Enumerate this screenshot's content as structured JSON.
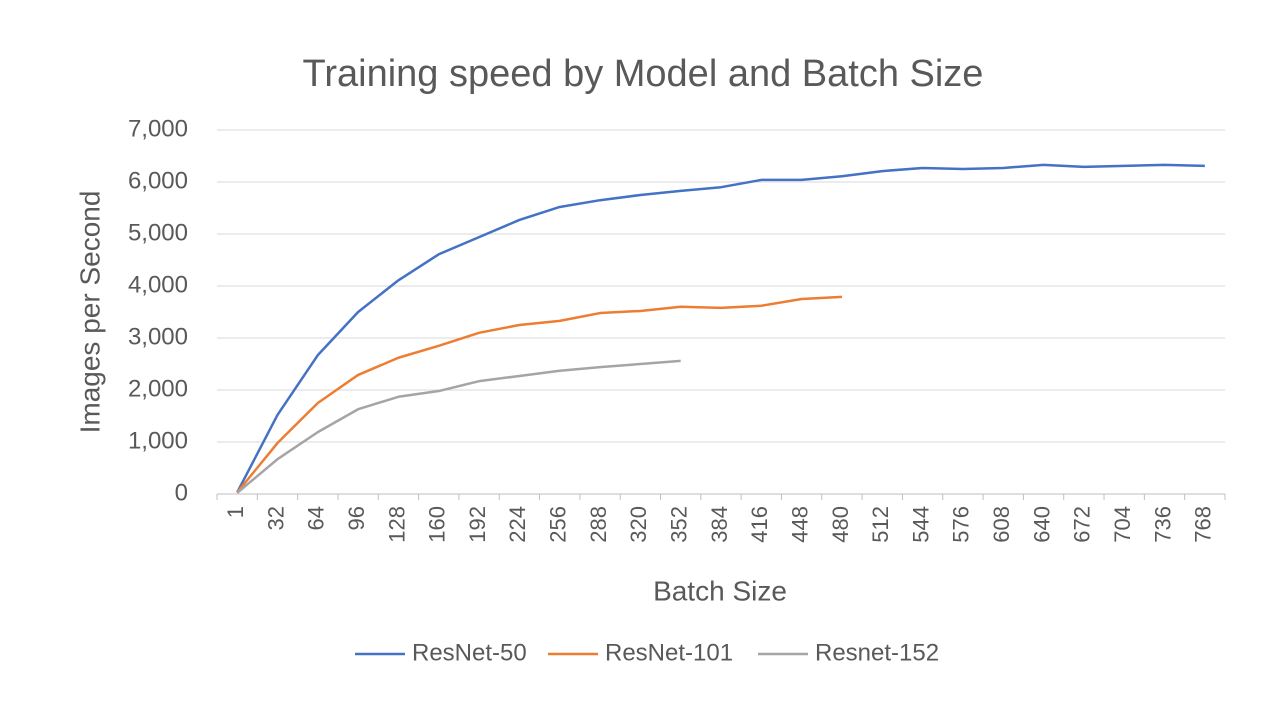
{
  "chart_data": {
    "type": "line",
    "title": "Training speed by Model and Batch Size",
    "x_label": "Batch Size",
    "y_label": "Images per Second",
    "categories": [
      "1",
      "32",
      "64",
      "96",
      "128",
      "160",
      "192",
      "224",
      "256",
      "288",
      "320",
      "352",
      "384",
      "416",
      "448",
      "480",
      "512",
      "544",
      "576",
      "608",
      "640",
      "672",
      "704",
      "736",
      "768"
    ],
    "series": [
      {
        "name": "ResNet-50",
        "color": "#4472c4",
        "values": [
          30,
          1520,
          2670,
          3500,
          4110,
          4610,
          4940,
          5270,
          5520,
          5650,
          5750,
          5830,
          5900,
          6040,
          6040,
          6110,
          6210,
          6270,
          6250,
          6270,
          6330,
          6290,
          6310,
          6330,
          6310
        ]
      },
      {
        "name": "ResNet-101",
        "color": "#ed7d31",
        "values": [
          30,
          980,
          1750,
          2290,
          2620,
          2850,
          3100,
          3250,
          3330,
          3480,
          3520,
          3600,
          3580,
          3620,
          3750,
          3790,
          null,
          null,
          null,
          null,
          null,
          null,
          null,
          null,
          null
        ]
      },
      {
        "name": "Resnet-152",
        "color": "#a5a5a5",
        "values": [
          20,
          670,
          1190,
          1630,
          1870,
          1980,
          2170,
          2270,
          2370,
          2440,
          2500,
          2560,
          null,
          null,
          null,
          null,
          null,
          null,
          null,
          null,
          null,
          null,
          null,
          null,
          null
        ]
      }
    ],
    "ylim": [
      0,
      7000
    ],
    "yticks": [
      0,
      {
        "value": 1000,
        "label": "1,000"
      },
      {
        "value": 2000,
        "label": "2,000"
      },
      {
        "value": 3000,
        "label": "3,000"
      },
      {
        "value": 4000,
        "label": "4,000"
      },
      {
        "value": 5000,
        "label": "5,000"
      },
      {
        "value": 6000,
        "label": "6,000"
      },
      {
        "value": 7000,
        "label": "7,000"
      }
    ],
    "grid": true,
    "legend": "bottom"
  }
}
